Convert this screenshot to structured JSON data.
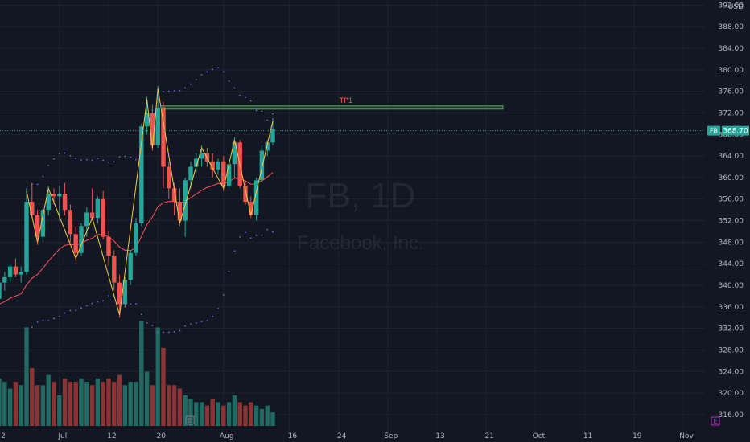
{
  "chart_data": {
    "type": "candlestick",
    "symbol": "FB",
    "currency": "USD",
    "last_price": "368.70",
    "watermark_ticker": "FB, 1D",
    "watermark_name": "Facebook, Inc.",
    "annotation": {
      "text": "TP1",
      "price": 373
    },
    "y_axis": {
      "min": 313,
      "max": 394,
      "ticks": [
        "392.00",
        "388.00",
        "384.00",
        "380.00",
        "376.00",
        "372.00",
        "368.00",
        "364.00",
        "360.00",
        "356.00",
        "352.00",
        "348.00",
        "344.00",
        "340.00",
        "336.00",
        "332.00",
        "328.00",
        "324.00",
        "320.00",
        "316.00"
      ]
    },
    "x_axis": {
      "labels": [
        "2",
        "Jul",
        "12",
        "20",
        "Aug",
        "16",
        "24",
        "Sep",
        "13",
        "21",
        "Oct",
        "11",
        "19",
        "Nov"
      ],
      "label_index": [
        0,
        11,
        20,
        29,
        41,
        53,
        62,
        71,
        80,
        89,
        98,
        107,
        116,
        125
      ],
      "dates": [
        "2021-06-22",
        "2021-07-01",
        "2021-07-12",
        "2021-07-20",
        "2021-08-02",
        "2021-08-16",
        "2021-08-24",
        "2021-09-01",
        "2021-09-13",
        "2021-09-21",
        "2021-10-01",
        "2021-10-11",
        "2021-10-19",
        "2021-11-01"
      ]
    },
    "colors": {
      "up": "#26a69a",
      "down": "#ef5350",
      "vol_up": "#1f6b63",
      "vol_down": "#8a3535",
      "ema": "#f7525f",
      "zigzag": "#f2c94c",
      "sar": "#5b6bf0",
      "target": "#4caf50",
      "price_line": "#26a69a"
    },
    "ohlc": [
      [
        337.5,
        341.5,
        334.5,
        340.5
      ],
      [
        340.5,
        342.5,
        339.0,
        341.5
      ],
      [
        341.5,
        344.0,
        340.5,
        343.5
      ],
      [
        343.5,
        345.0,
        341.5,
        342.0
      ],
      [
        342.0,
        343.5,
        340.5,
        342.5
      ],
      [
        342.5,
        358.0,
        342.0,
        355.5
      ],
      [
        355.5,
        359.0,
        352.5,
        353.0
      ],
      [
        353.0,
        354.0,
        347.5,
        349.0
      ],
      [
        349.0,
        354.5,
        348.0,
        354.0
      ],
      [
        354.0,
        358.5,
        353.0,
        357.0
      ],
      [
        357.0,
        358.0,
        355.0,
        356.5
      ],
      [
        356.5,
        358.5,
        352.0,
        357.0
      ],
      [
        357.0,
        359.0,
        353.0,
        354.0
      ],
      [
        354.0,
        355.0,
        348.0,
        349.5
      ],
      [
        349.5,
        351.0,
        344.5,
        346.0
      ],
      [
        346.0,
        351.5,
        345.5,
        351.0
      ],
      [
        351.0,
        354.5,
        349.0,
        353.5
      ],
      [
        353.5,
        358.0,
        352.0,
        352.5
      ],
      [
        352.5,
        356.5,
        351.5,
        356.0
      ],
      [
        356.0,
        357.5,
        348.5,
        349.0
      ],
      [
        349.0,
        350.0,
        343.5,
        345.5
      ],
      [
        345.5,
        346.5,
        339.0,
        340.5
      ],
      [
        340.5,
        342.0,
        334.0,
        336.5
      ],
      [
        336.5,
        341.5,
        336.0,
        341.0
      ],
      [
        341.0,
        346.5,
        340.0,
        346.0
      ],
      [
        346.0,
        352.5,
        345.5,
        351.5
      ],
      [
        351.5,
        370.0,
        351.0,
        369.5
      ],
      [
        369.5,
        375.0,
        368.0,
        372.0
      ],
      [
        372.0,
        373.5,
        365.0,
        366.0
      ],
      [
        366.0,
        377.0,
        365.5,
        373.0
      ],
      [
        373.0,
        374.0,
        358.0,
        362.0
      ],
      [
        362.0,
        363.0,
        356.0,
        358.0
      ],
      [
        358.0,
        359.0,
        353.0,
        355.5
      ],
      [
        355.5,
        358.0,
        351.0,
        352.0
      ],
      [
        352.0,
        360.0,
        349.0,
        359.5
      ],
      [
        359.5,
        363.0,
        358.0,
        362.0
      ],
      [
        362.0,
        364.5,
        361.0,
        363.5
      ],
      [
        363.5,
        366.0,
        362.0,
        364.5
      ],
      [
        364.5,
        365.5,
        362.0,
        363.0
      ],
      [
        363.0,
        364.5,
        360.0,
        361.5
      ],
      [
        361.5,
        363.5,
        360.5,
        363.0
      ],
      [
        363.0,
        364.0,
        357.5,
        358.5
      ],
      [
        358.5,
        363.0,
        358.0,
        362.5
      ],
      [
        362.5,
        367.5,
        360.0,
        366.5
      ],
      [
        366.5,
        367.0,
        358.0,
        358.5
      ],
      [
        358.5,
        359.5,
        355.0,
        355.5
      ],
      [
        355.5,
        356.5,
        352.5,
        353.0
      ],
      [
        353.0,
        360.0,
        352.0,
        359.5
      ],
      [
        359.5,
        366.0,
        359.0,
        365.0
      ],
      [
        365.0,
        367.0,
        364.0,
        366.5
      ],
      [
        366.5,
        371.0,
        366.0,
        369.0
      ]
    ],
    "volume": [
      0.14,
      0.13,
      0.11,
      0.13,
      0.12,
      0.29,
      0.17,
      0.12,
      0.12,
      0.15,
      0.13,
      0.09,
      0.14,
      0.13,
      0.13,
      0.14,
      0.13,
      0.12,
      0.14,
      0.13,
      0.14,
      0.13,
      0.15,
      0.12,
      0.13,
      0.13,
      0.31,
      0.16,
      0.12,
      0.29,
      0.23,
      0.12,
      0.12,
      0.11,
      0.09,
      0.08,
      0.07,
      0.07,
      0.06,
      0.08,
      0.07,
      0.06,
      0.07,
      0.09,
      0.07,
      0.06,
      0.07,
      0.06,
      0.05,
      0.06,
      0.04
    ]
  }
}
